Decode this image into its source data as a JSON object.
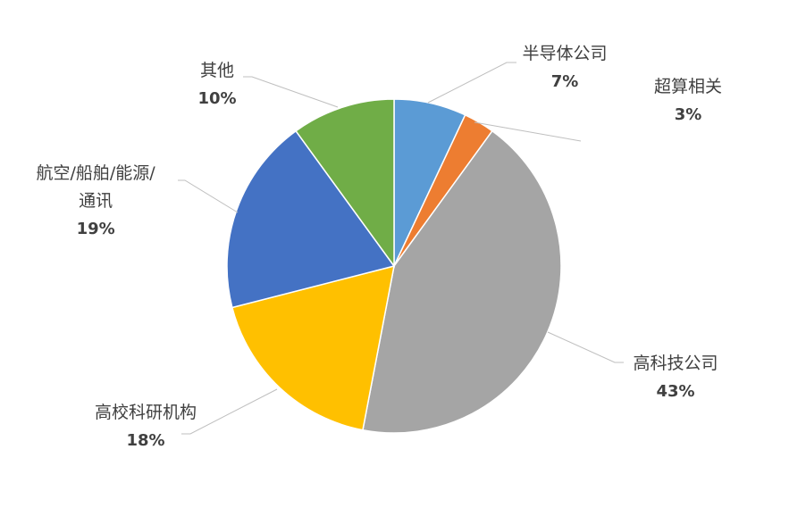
{
  "chart_data": {
    "type": "pie",
    "title": "",
    "slices": [
      {
        "label": "半导体公司",
        "value": 7,
        "value_label": "7%",
        "color": "#5B9BD5"
      },
      {
        "label": "超算相关",
        "value": 3,
        "value_label": "3%",
        "color": "#ED7D31"
      },
      {
        "label": "高科技公司",
        "value": 43,
        "value_label": "43%",
        "color": "#A5A5A5"
      },
      {
        "label": "高校科研机构",
        "value": 18,
        "value_label": "18%",
        "color": "#FFC000"
      },
      {
        "label": "航空/船舶/能源/通讯",
        "label_lines": [
          "航空/船舶/能源/",
          "通讯"
        ],
        "value": 19,
        "value_label": "19%",
        "color": "#4472C4"
      },
      {
        "label": "其他",
        "value": 10,
        "value_label": "10%",
        "color": "#70AD47"
      }
    ],
    "legend": "none",
    "data_labels": "outside with leader lines"
  }
}
